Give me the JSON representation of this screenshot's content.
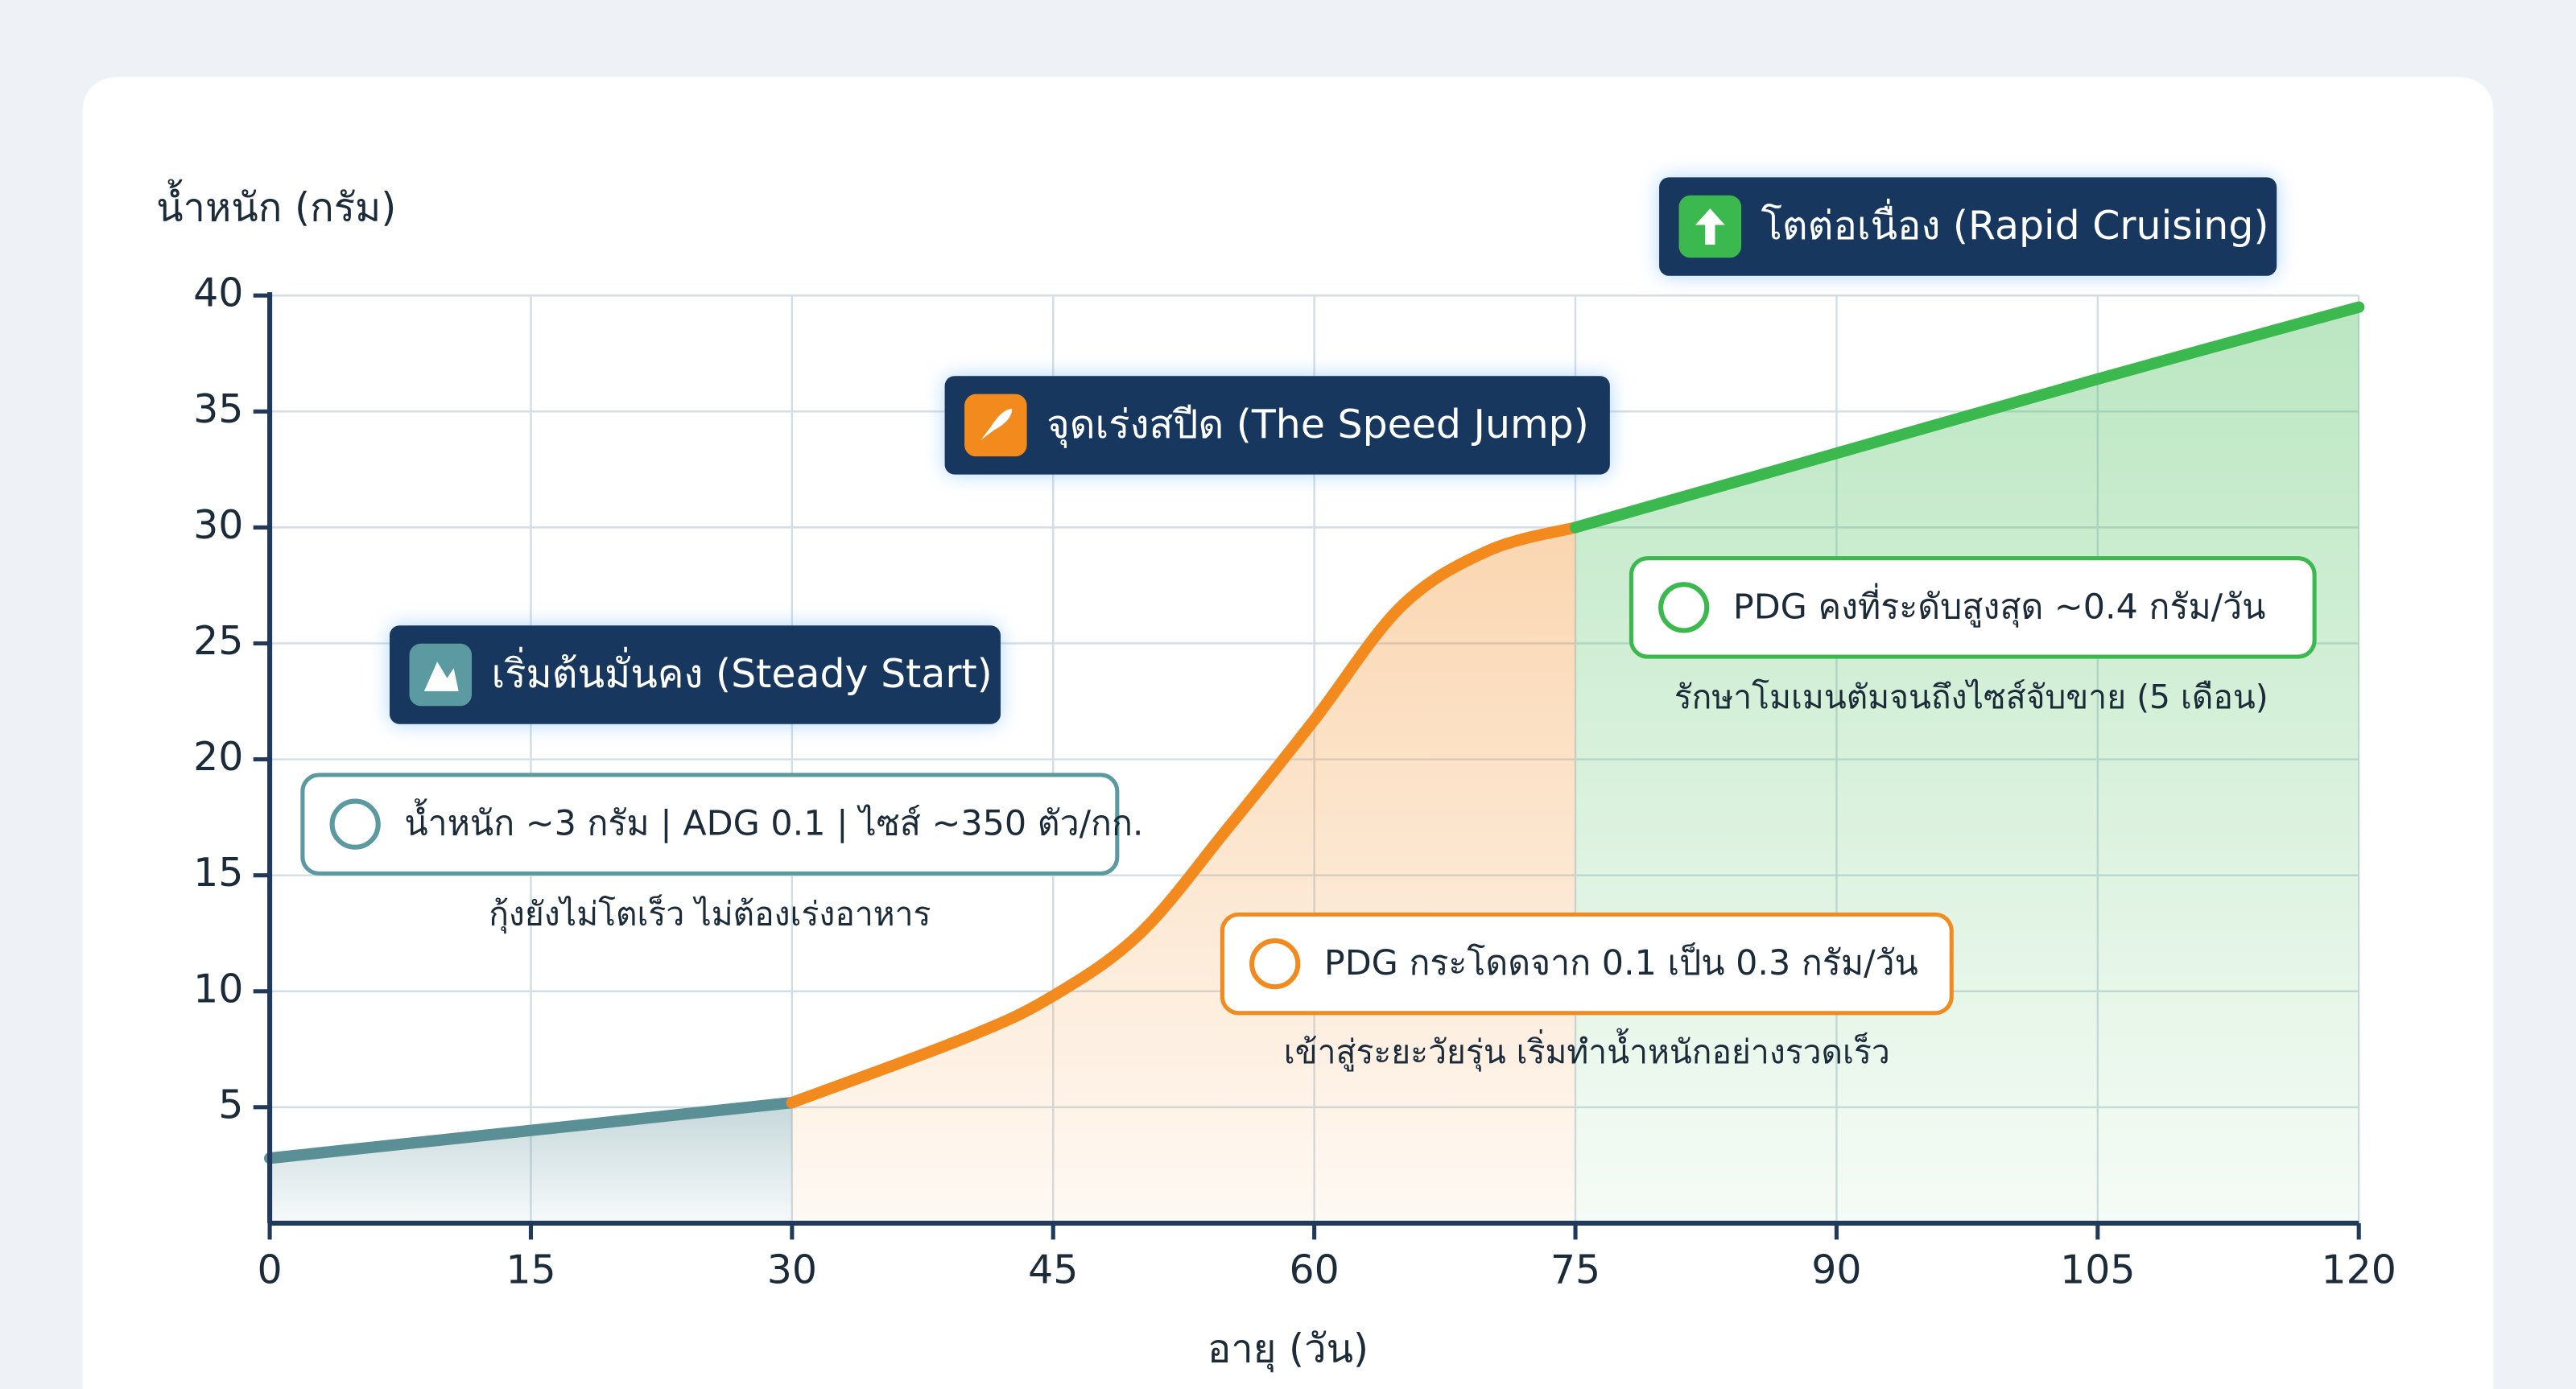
{
  "chart_data": {
    "type": "line",
    "ylabel": "น้ำหนัก (กรัม)",
    "xlabel": "อายุ (วัน)",
    "x": [
      0,
      15,
      30,
      40,
      45,
      50,
      55,
      60,
      65,
      70,
      75,
      90,
      105,
      120
    ],
    "series": [
      {
        "color": "#5a8f96",
        "values": [
          2.8,
          4,
          5.2,
          null,
          null,
          null,
          null,
          null,
          null,
          null,
          null,
          null,
          null,
          null
        ]
      },
      {
        "color": "#f28a1e",
        "values": [
          null,
          null,
          5.2,
          8,
          9.8,
          12.5,
          17,
          21.7,
          26.6,
          29,
          30,
          null,
          null,
          null
        ]
      },
      {
        "color": "#3cb94e",
        "values": [
          null,
          null,
          null,
          null,
          null,
          null,
          null,
          null,
          null,
          null,
          30,
          33.2,
          36.4,
          39.5
        ]
      }
    ],
    "xlim": [
      0,
      120
    ],
    "xticks": [
      0,
      15,
      30,
      45,
      60,
      75,
      90,
      105,
      120
    ],
    "ylim": [
      0,
      40
    ],
    "yticks": [
      5,
      10,
      15,
      20,
      25,
      30,
      35,
      40
    ],
    "grid": true,
    "annotations": [
      {
        "title": "เริ่มต้นมั่นคง (Steady Start)",
        "detail": "น้ำหนัก ~3 กรัม | ADG 0.1 | ไซส์ ~350 ตัว/กก.",
        "note": "กุ้งยังไม่โตเร็ว ไม่ต้องเร่งอาหาร",
        "color": "#5a9aa0"
      },
      {
        "title": "จุดเร่งสปีด (The Speed Jump)",
        "detail": "PDG กระโดดจาก 0.1 เป็น 0.3 กรัม/วัน",
        "note": "เข้าสู่ระยะวัยรุ่น เริ่มทำน้ำหนักอย่างรวดเร็ว",
        "color": "#f28a1e"
      },
      {
        "title": "โตต่อเนื่อง (Rapid Cruising)",
        "detail": "PDG คงที่ระดับสูงสุด ~0.4 กรัม/วัน",
        "note": "รักษาโมเมนตัมจนถึงไซส์จับขาย (5 เดือน)",
        "color": "#3cb94e"
      }
    ]
  }
}
